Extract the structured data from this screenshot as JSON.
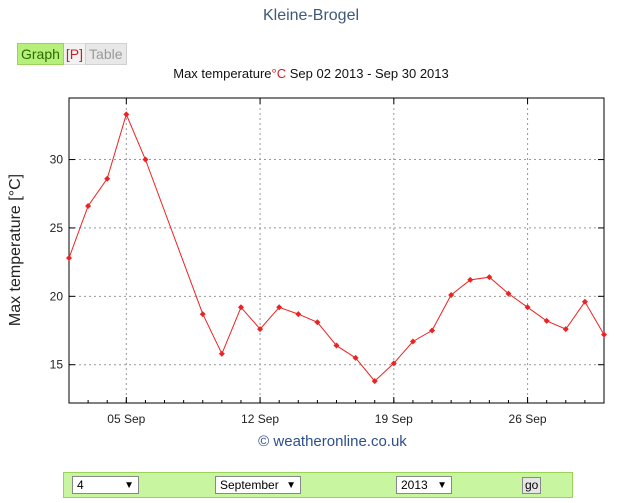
{
  "page": {
    "station": "Kleine-Brogel",
    "tabs": {
      "graph": "Graph",
      "print": "[P]",
      "table": "Table"
    },
    "title_prefix": "Max temperature",
    "title_unit": "°C",
    "title_range": " Sep 02 2013 - Sep 30 2013",
    "credit": "© weatheronline.co.uk"
  },
  "controls": {
    "day": "4",
    "month": "September",
    "year": "2013",
    "go_label": "go"
  },
  "colors": {
    "line": "#ee2222",
    "grid": "#999999"
  },
  "chart_data": {
    "type": "line",
    "title": "Max temperature°C Sep 02 2013 - Sep 30 2013",
    "ylabel": "Max temperature [°C]",
    "xlabel": "",
    "x_ticks": [
      {
        "day": 5,
        "label": "05 Sep"
      },
      {
        "day": 12,
        "label": "12 Sep"
      },
      {
        "day": 19,
        "label": "19 Sep"
      },
      {
        "day": 26,
        "label": "26 Sep"
      }
    ],
    "y_ticks": [
      15,
      20,
      25,
      30
    ],
    "xlim": [
      2,
      30
    ],
    "ylim": [
      12.2,
      34.5
    ],
    "grid": true,
    "series": [
      {
        "days": [
          2,
          3,
          4,
          5,
          6,
          9,
          10,
          11,
          12,
          13,
          14,
          15,
          16,
          17,
          18,
          19,
          20,
          21,
          22,
          23,
          24,
          25,
          26,
          27,
          28,
          29,
          30
        ],
        "values": [
          22.8,
          26.6,
          28.6,
          33.3,
          30.0,
          18.7,
          15.8,
          19.2,
          17.6,
          19.2,
          18.7,
          18.1,
          16.4,
          15.5,
          13.8,
          15.1,
          16.7,
          17.5,
          20.1,
          21.2,
          21.4,
          20.2,
          19.2,
          18.2,
          17.6,
          19.6,
          17.2
        ]
      }
    ]
  }
}
